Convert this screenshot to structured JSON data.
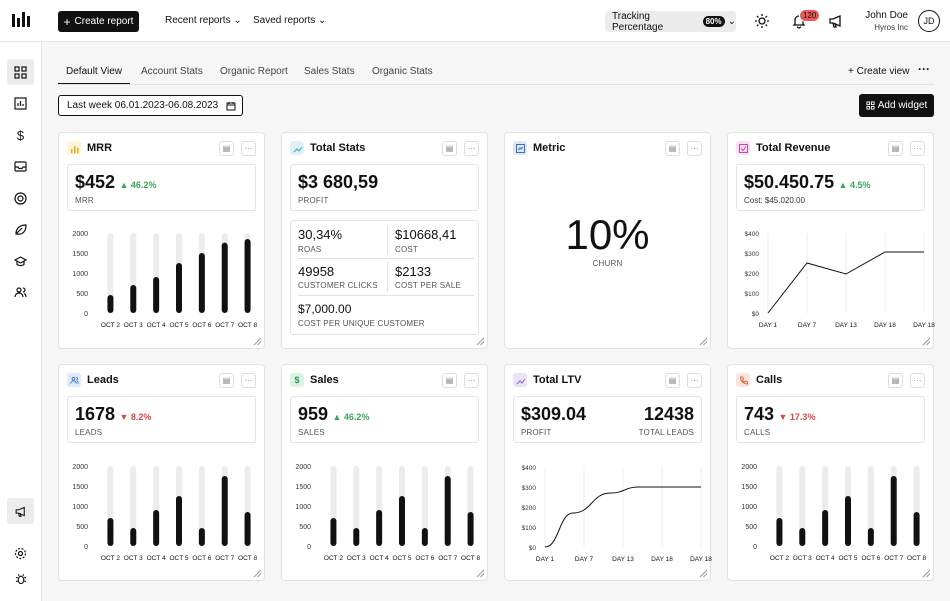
{
  "topbar": {
    "create_report": "Create report",
    "recent_reports": "Recent reports",
    "saved_reports": "Saved reports",
    "tracking_label": "Tracking Percentage",
    "tracking_value": "80%",
    "notification_count": "120",
    "user_name": "John Doe",
    "user_company": "Hyros Inc",
    "user_initials": "JD"
  },
  "tabs": [
    "Default View",
    "Account Stats",
    "Organic Report",
    "Sales Stats",
    "Organic Stats"
  ],
  "toolbar": {
    "create_view": "Create view",
    "date_range": "Last week 06.01.2023-06.08.2023",
    "add_widget": "Add widget"
  },
  "colors": {
    "up": "#3aa55a",
    "down": "#d94848",
    "bar": "#111111",
    "bar_bg": "#ececec"
  },
  "cards": {
    "mrr": {
      "title": "MRR",
      "value": "$452",
      "change": "46.2%",
      "label": "MRR"
    },
    "total_stats": {
      "title": "Total Stats",
      "value": "$3 680,59",
      "label": "PROFIT",
      "roas": "30,34%",
      "roas_label": "ROAS",
      "cost": "$10668,41",
      "cost_label": "COST",
      "clicks": "49958",
      "clicks_label": "CUSTOMER CLICKS",
      "cps": "$2133",
      "cps_label": "COST PER SALE",
      "cpuc": "$7,000.00",
      "cpuc_label": "COST PER UNIQUE CUSTOMER"
    },
    "metric": {
      "title": "Metric",
      "value": "10%",
      "label": "CHURN"
    },
    "total_revenue": {
      "title": "Total Revenue",
      "value": "$50.450.75",
      "change": "4.5%",
      "label": "Cost: $45.020.00"
    },
    "leads": {
      "title": "Leads",
      "value": "1678",
      "change": "8.2%",
      "label": "LEADS"
    },
    "sales": {
      "title": "Sales",
      "value": "959",
      "change": "46.2%",
      "label": "SALES"
    },
    "total_ltv": {
      "title": "Total LTV",
      "value": "$309.04",
      "label": "PROFIT",
      "value2": "12438",
      "label2": "TOTAL LEADS"
    },
    "calls": {
      "title": "Calls",
      "value": "743",
      "change": "17.3%",
      "label": "CALLS"
    }
  },
  "chart_data": [
    {
      "id": "mrr",
      "type": "bar",
      "categories": [
        "OCT 2",
        "OCT 3",
        "OCT 4",
        "OCT 5",
        "OCT 6",
        "OCT 7",
        "OCT 8"
      ],
      "values": [
        450,
        700,
        900,
        1250,
        1500,
        1760,
        1850
      ],
      "ylim": [
        0,
        2000
      ],
      "yticks": [
        "2000",
        "1500",
        "1000",
        "500",
        "0"
      ]
    },
    {
      "id": "total_revenue",
      "type": "line",
      "x": [
        "DAY 1",
        "DAY 7",
        "DAY 13",
        "DAY 18",
        "DAY 18"
      ],
      "values": [
        0,
        250,
        195,
        305,
        305
      ],
      "ylim": [
        0,
        400
      ],
      "yticks": [
        "$400",
        "$300",
        "$200",
        "$100",
        "$0"
      ]
    },
    {
      "id": "leads",
      "type": "bar",
      "categories": [
        "OCT 2",
        "OCT 3",
        "OCT 4",
        "OCT 5",
        "OCT 6",
        "OCT 7",
        "OCT 8"
      ],
      "values": [
        700,
        450,
        900,
        1250,
        450,
        1750,
        850
      ],
      "ylim": [
        0,
        2000
      ],
      "yticks": [
        "2000",
        "1500",
        "1000",
        "500",
        "0"
      ]
    },
    {
      "id": "sales",
      "type": "bar",
      "categories": [
        "OCT 2",
        "OCT 3",
        "OCT 4",
        "OCT 5",
        "OCT 6",
        "OCT 7",
        "OCT 8"
      ],
      "values": [
        700,
        450,
        900,
        1250,
        450,
        1750,
        850
      ],
      "ylim": [
        0,
        2000
      ],
      "yticks": [
        "2000",
        "1500",
        "1000",
        "500",
        "0"
      ]
    },
    {
      "id": "total_ltv",
      "type": "line",
      "x": [
        "DAY 1",
        "DAY 7",
        "DAY 13",
        "DAY 18",
        "DAY 18"
      ],
      "values": [
        0,
        180,
        300,
        300,
        300
      ],
      "curve_points": [
        [
          0,
          0
        ],
        [
          0.18,
          170
        ],
        [
          0.42,
          270
        ],
        [
          0.6,
          300
        ],
        [
          1,
          300
        ]
      ],
      "ylim": [
        0,
        400
      ],
      "yticks": [
        "$400",
        "$300",
        "$200",
        "$100",
        "$0"
      ]
    },
    {
      "id": "calls",
      "type": "bar",
      "categories": [
        "OCT 2",
        "OCT 3",
        "OCT 4",
        "OCT 5",
        "OCT 6",
        "OCT 7",
        "OCT 8"
      ],
      "values": [
        700,
        450,
        900,
        1250,
        450,
        1750,
        850
      ],
      "ylim": [
        0,
        2000
      ],
      "yticks": [
        "2000",
        "1500",
        "1000",
        "500",
        "0"
      ]
    }
  ]
}
